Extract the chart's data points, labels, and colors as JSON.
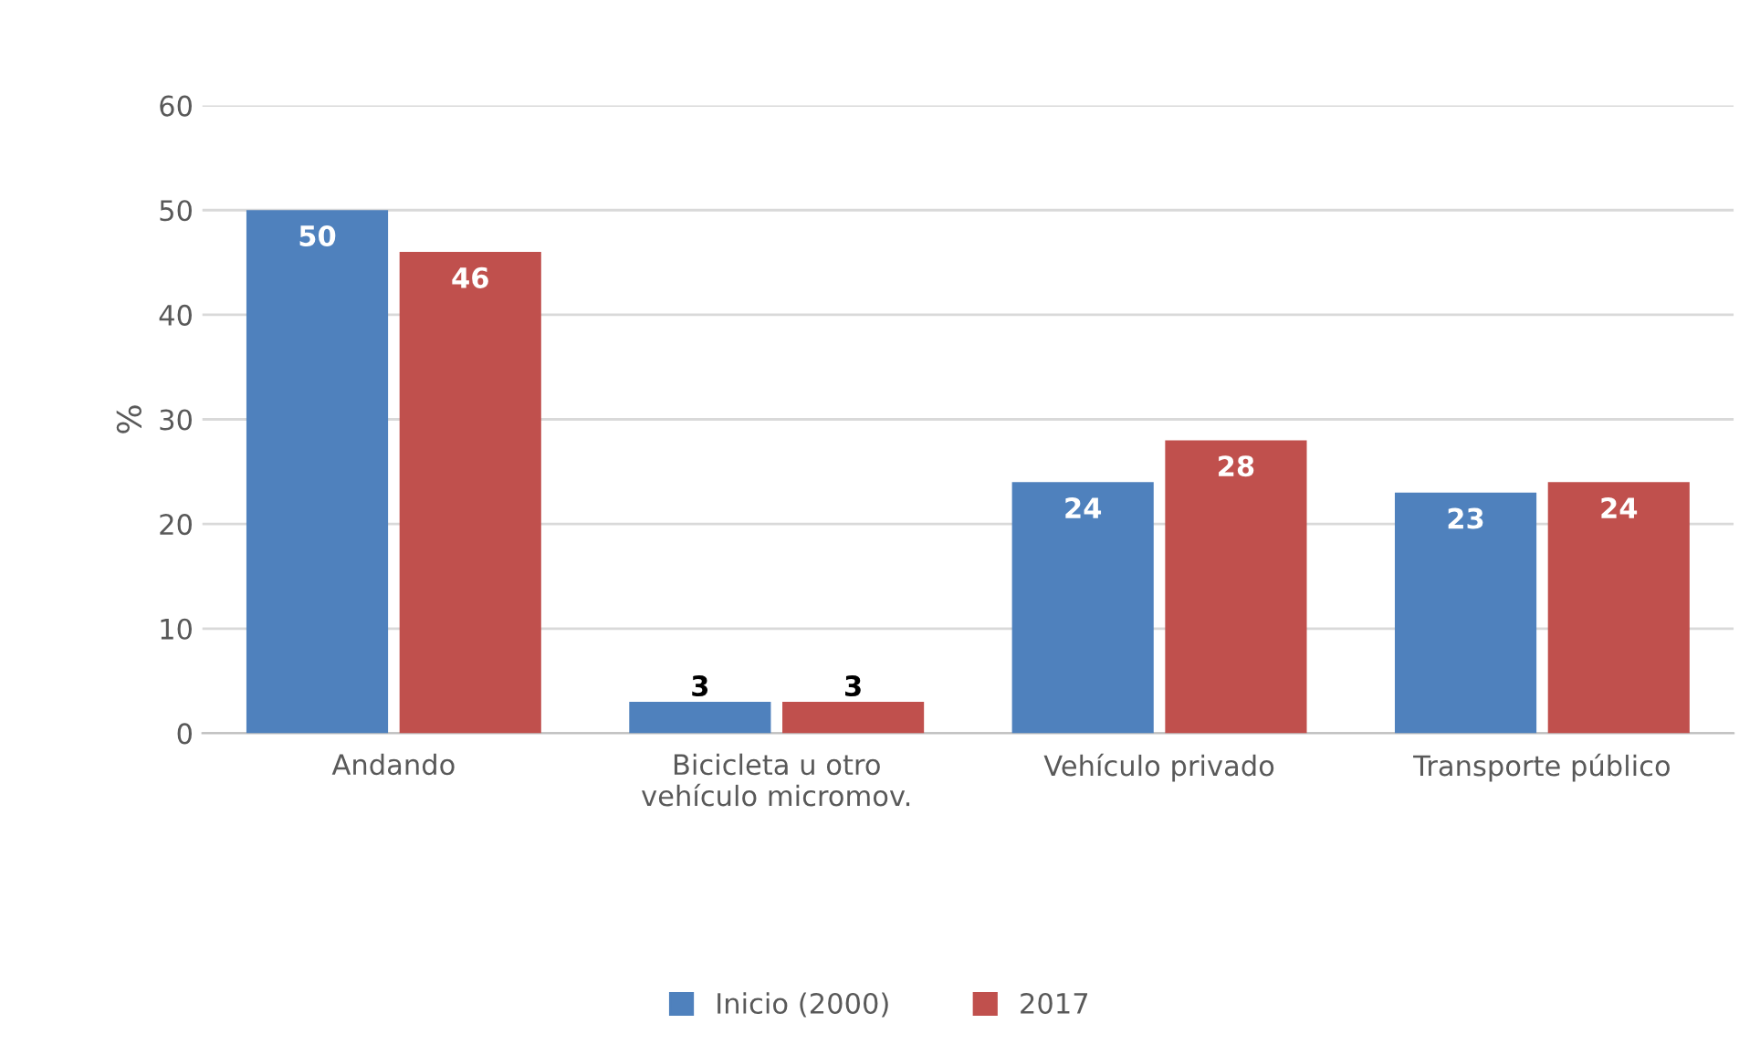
{
  "chart_data": {
    "type": "bar",
    "ylabel": "%",
    "categories": [
      "Andando",
      "Bicicleta u otro\nvehículo micromov.",
      "Vehículo privado",
      "Transporte público"
    ],
    "series": [
      {
        "name": "Inicio (2000)",
        "color": "#4f81bd",
        "values": [
          50,
          3,
          24,
          23
        ]
      },
      {
        "name": "2017",
        "color": "#c0504d",
        "values": [
          46,
          3,
          28,
          24
        ]
      }
    ],
    "ylim": [
      0,
      60
    ],
    "yticks": [
      0,
      10,
      20,
      30,
      40,
      50,
      60
    ],
    "grid": "y",
    "legend": "bottom",
    "data_labels": true
  }
}
